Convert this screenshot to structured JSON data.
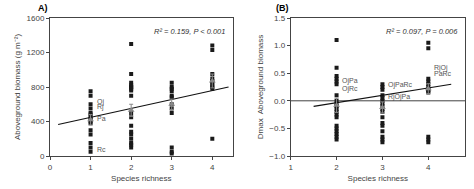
{
  "chart_data": [
    {
      "type": "scatter",
      "title": "A)",
      "xlabel": "Species richness",
      "ylabel": "Aboveground biomass (g m⁻²)",
      "xlim": [
        0,
        4.5
      ],
      "ylim": [
        0,
        1600
      ],
      "xticks": [
        0,
        1,
        2,
        3,
        4
      ],
      "yticks": [
        0,
        400,
        800,
        1200,
        1600
      ],
      "grid": false,
      "series": [
        {
          "type": "scatter",
          "marker": "square",
          "color": "#1a1a1a",
          "x": [
            1,
            1,
            1,
            1,
            1,
            1,
            1,
            1,
            1,
            1,
            1,
            1,
            1,
            1,
            1,
            2,
            2,
            2,
            2,
            2,
            2,
            2,
            2,
            2,
            2,
            2,
            2,
            2,
            2,
            2,
            2,
            2,
            2,
            3,
            3,
            3,
            3,
            3,
            3,
            3,
            3,
            3,
            3,
            3,
            3,
            4,
            4,
            4,
            4,
            4,
            4,
            4,
            4,
            4,
            4
          ],
          "values": [
            750,
            700,
            600,
            550,
            500,
            480,
            450,
            430,
            400,
            380,
            300,
            250,
            150,
            100,
            50,
            1300,
            950,
            850,
            820,
            800,
            800,
            780,
            760,
            700,
            500,
            450,
            350,
            280,
            250,
            200,
            150,
            130,
            100,
            850,
            800,
            780,
            750,
            700,
            680,
            600,
            550,
            500,
            100,
            50,
            30,
            1280,
            1230,
            950,
            900,
            870,
            850,
            820,
            800,
            780,
            200
          ]
        },
        {
          "type": "line",
          "color": "#111111",
          "x": [
            0.2,
            4.4
          ],
          "values": [
            365,
            800
          ]
        },
        {
          "type": "scatter",
          "marker": "triangle-up",
          "color": "#888888",
          "x": [
            1,
            2,
            3,
            4
          ],
          "values": [
            420,
            530,
            600,
            870
          ],
          "error": [
            60,
            70,
            60,
            80
          ]
        }
      ],
      "annotations": [
        {
          "text": "R² = 0.159, P < 0.001",
          "color": "#333333"
        },
        {
          "text": "Oj",
          "x": 1.1,
          "y": 625,
          "color": "#555555"
        },
        {
          "text": "Rj",
          "x": 1.1,
          "y": 565,
          "color": "#555555"
        },
        {
          "text": "Pa",
          "x": 1.1,
          "y": 430,
          "color": "#555555"
        },
        {
          "text": "Rc",
          "x": 1.1,
          "y": 80,
          "color": "#555555"
        }
      ]
    },
    {
      "type": "scatter",
      "title": "(B)",
      "xlabel": "Species richness",
      "ylabel": "Dmax  Aboveground biomass",
      "xlim": [
        1,
        4.8
      ],
      "ylim": [
        -1.0,
        1.5
      ],
      "xticks": [
        1,
        2,
        3,
        4
      ],
      "yticks": [
        {
          "value": -1.0,
          "label": "−1.0"
        },
        {
          "value": -0.5,
          "label": "−0.5"
        },
        {
          "value": 0.0,
          "label": "0.0"
        },
        {
          "value": 0.5,
          "label": "0.5"
        },
        {
          "value": 1.0,
          "label": "1.0"
        },
        {
          "value": 1.5,
          "label": "1.5"
        }
      ],
      "grid": false,
      "series": [
        {
          "type": "scatter",
          "marker": "square",
          "color": "#1a1a1a",
          "x": [
            2,
            2,
            2,
            2,
            2,
            2,
            2,
            2,
            2,
            2,
            2,
            2,
            2,
            2,
            2,
            2,
            2,
            2,
            2,
            2,
            3,
            3,
            3,
            3,
            3,
            3,
            3,
            3,
            3,
            3,
            3,
            3,
            3,
            3,
            3,
            3,
            3,
            4,
            4,
            4,
            4,
            4,
            4,
            4,
            4,
            4,
            4,
            4,
            4
          ],
          "values": [
            1.1,
            0.6,
            0.45,
            0.4,
            0.35,
            0.3,
            0.1,
            0.0,
            -0.05,
            -0.1,
            -0.15,
            -0.2,
            -0.25,
            -0.3,
            -0.45,
            -0.5,
            -0.55,
            -0.6,
            -0.65,
            -0.7,
            0.3,
            0.25,
            0.2,
            0.1,
            0.05,
            0.0,
            -0.05,
            -0.1,
            -0.15,
            -0.2,
            -0.3,
            -0.4,
            -0.45,
            -0.55,
            -0.65,
            -0.7,
            -0.75,
            1.05,
            0.95,
            0.4,
            0.35,
            0.3,
            0.25,
            0.2,
            0.18,
            0.15,
            -0.65,
            -0.7,
            -0.75
          ]
        },
        {
          "type": "line",
          "color": "#111111",
          "x": [
            1.5,
            4.5
          ],
          "values": [
            -0.1,
            0.3
          ]
        },
        {
          "type": "hline",
          "color": "#111111",
          "values": [
            0.0
          ]
        },
        {
          "type": "scatter",
          "marker": "triangle-up",
          "color": "#888888",
          "x": [
            2,
            3,
            4
          ],
          "values": [
            -0.08,
            -0.12,
            0.22
          ],
          "error": [
            0.13,
            0.1,
            0.09
          ]
        }
      ],
      "annotations": [
        {
          "text": "R² = 0.097, P = 0.006",
          "color": "#333333"
        },
        {
          "text": "OjPa",
          "x": 2.08,
          "y": 0.36,
          "color": "#555555"
        },
        {
          "text": "OjRc",
          "x": 2.08,
          "y": 0.22,
          "color": "#555555"
        },
        {
          "text": "OjPaRc",
          "x": 3.08,
          "y": 0.28,
          "color": "#555555"
        },
        {
          "text": "RjOjPa",
          "x": 3.08,
          "y": 0.06,
          "color": "#555555"
        },
        {
          "text": "RjOj",
          "x": 4.08,
          "y": 0.6,
          "color": "#555555"
        },
        {
          "text": "PaRc",
          "x": 4.08,
          "y": 0.49,
          "color": "#555555"
        }
      ]
    }
  ]
}
